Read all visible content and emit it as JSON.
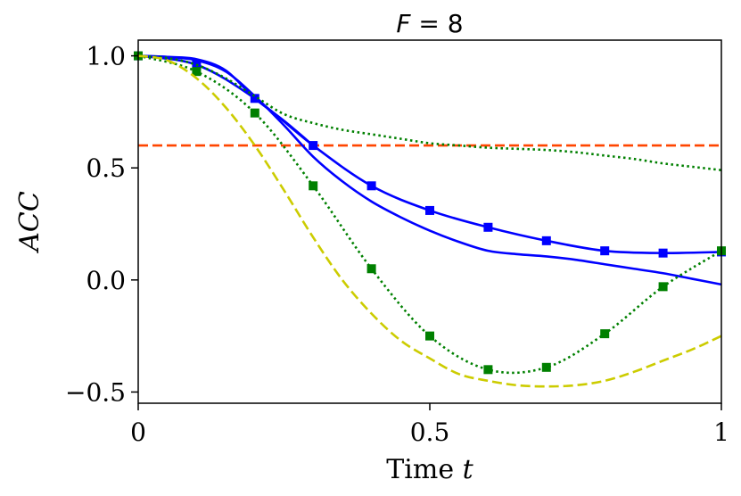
{
  "chart_data": {
    "type": "line",
    "title": "F = 8",
    "title_parts": {
      "var": "F",
      "rest": " = 8"
    },
    "xlabel": "Time t",
    "xlabel_parts": {
      "text": "Time ",
      "var": "t"
    },
    "ylabel": "ACC",
    "xlim": [
      0,
      1
    ],
    "ylim": [
      -0.55,
      1.07
    ],
    "x_ticks": [
      0,
      0.5,
      1
    ],
    "x_tick_labels": [
      "0",
      "0.5",
      "1"
    ],
    "y_ticks": [
      1.0,
      0.5,
      0.0,
      -0.5
    ],
    "y_tick_labels": [
      "1.0",
      "0.5",
      "0.0",
      "−0.5"
    ],
    "grid": false,
    "reference_line": {
      "name": "threshold",
      "y": 0.6,
      "color": "#ff4500",
      "style": "dashed"
    },
    "series": [
      {
        "name": "blue-solid-a",
        "color": "#0000ff",
        "style": "solid",
        "marker": false,
        "x": [
          0,
          0.05,
          0.1,
          0.15,
          0.2,
          0.25,
          0.3,
          0.35,
          0.4,
          0.45,
          0.5,
          0.55,
          0.6,
          0.65,
          0.7,
          0.75,
          0.8,
          0.85,
          0.9,
          0.95,
          1.0
        ],
        "y": [
          1.0,
          0.995,
          0.98,
          0.93,
          0.82,
          0.69,
          0.55,
          0.44,
          0.35,
          0.28,
          0.22,
          0.17,
          0.13,
          0.115,
          0.105,
          0.09,
          0.07,
          0.05,
          0.03,
          0.005,
          -0.02
        ]
      },
      {
        "name": "blue-solid-b",
        "color": "#0000ff",
        "style": "solid",
        "marker": false,
        "x": [
          0,
          0.05,
          0.1,
          0.15,
          0.2,
          0.25,
          0.3
        ],
        "y": [
          1.0,
          0.995,
          0.985,
          0.935,
          0.81,
          0.71,
          0.6
        ]
      },
      {
        "name": "blue-square-marker",
        "color": "#0000ff",
        "style": "solid",
        "marker": "square",
        "x": [
          0,
          0.1,
          0.2,
          0.3,
          0.4,
          0.5,
          0.6,
          0.7,
          0.8,
          0.9,
          1.0
        ],
        "y": [
          1.0,
          0.96,
          0.81,
          0.6,
          0.42,
          0.31,
          0.235,
          0.175,
          0.13,
          0.12,
          0.125
        ]
      },
      {
        "name": "green-dotted-upper",
        "color": "#008000",
        "style": "dotted",
        "marker": false,
        "x": [
          0,
          0.05,
          0.1,
          0.15,
          0.2,
          0.25,
          0.3,
          0.35,
          0.4,
          0.45,
          0.5,
          0.55,
          0.6,
          0.65,
          0.7,
          0.75,
          0.8,
          0.85,
          0.9,
          0.95,
          1.0
        ],
        "y": [
          1.0,
          0.99,
          0.96,
          0.9,
          0.82,
          0.74,
          0.7,
          0.67,
          0.65,
          0.63,
          0.61,
          0.6,
          0.59,
          0.585,
          0.58,
          0.57,
          0.555,
          0.54,
          0.52,
          0.505,
          0.49
        ]
      },
      {
        "name": "green-dotted-square",
        "color": "#008000",
        "style": "dotted",
        "marker": "square",
        "x": [
          0,
          0.1,
          0.2,
          0.3,
          0.4,
          0.5,
          0.6,
          0.7,
          0.8,
          0.9,
          1.0
        ],
        "y": [
          1.0,
          0.93,
          0.745,
          0.42,
          0.05,
          -0.25,
          -0.4,
          -0.39,
          -0.24,
          -0.03,
          0.13
        ]
      },
      {
        "name": "yellow-dashed",
        "color": "#cccc00",
        "style": "dashed",
        "marker": false,
        "x": [
          0,
          0.05,
          0.1,
          0.15,
          0.2,
          0.25,
          0.3,
          0.35,
          0.4,
          0.45,
          0.5,
          0.55,
          0.6,
          0.65,
          0.7,
          0.75,
          0.8,
          0.85,
          0.9,
          0.95,
          1.0
        ],
        "y": [
          1.0,
          0.98,
          0.9,
          0.77,
          0.6,
          0.4,
          0.19,
          0.0,
          -0.15,
          -0.27,
          -0.35,
          -0.42,
          -0.45,
          -0.47,
          -0.475,
          -0.47,
          -0.45,
          -0.41,
          -0.36,
          -0.31,
          -0.25
        ]
      }
    ]
  }
}
